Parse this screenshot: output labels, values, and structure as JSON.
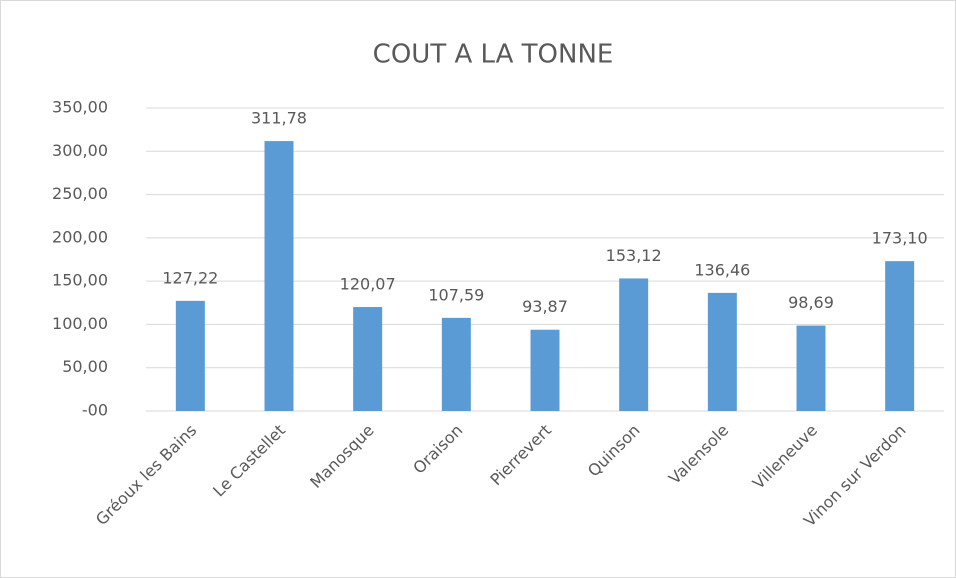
{
  "chart_data": {
    "type": "bar",
    "title": "COUT A LA TONNE",
    "categories": [
      "Gréoux les Bains",
      "Le Castellet",
      "Manosque",
      "Oraison",
      "Pierrevert",
      "Quinson",
      "Valensole",
      "Villeneuve",
      "Vinon sur Verdon"
    ],
    "values": [
      127.22,
      311.78,
      120.07,
      107.59,
      93.87,
      153.12,
      136.46,
      98.69,
      173.1
    ],
    "value_labels": [
      "127,22",
      "311,78",
      "120,07",
      "107,59",
      "93,87",
      "153,12",
      "136,46",
      "98,69",
      "173,10"
    ],
    "color": "#5b9bd5",
    "ylim": [
      0,
      350
    ],
    "yticks": [
      {
        "value": 0,
        "label": "-00"
      },
      {
        "value": 50,
        "label": "50,00"
      },
      {
        "value": 100,
        "label": "100,00"
      },
      {
        "value": 150,
        "label": "150,00"
      },
      {
        "value": 200,
        "label": "200,00"
      },
      {
        "value": 250,
        "label": "250,00"
      },
      {
        "value": 300,
        "label": "300,00"
      },
      {
        "value": 350,
        "label": "350,00"
      }
    ],
    "grid": true
  }
}
